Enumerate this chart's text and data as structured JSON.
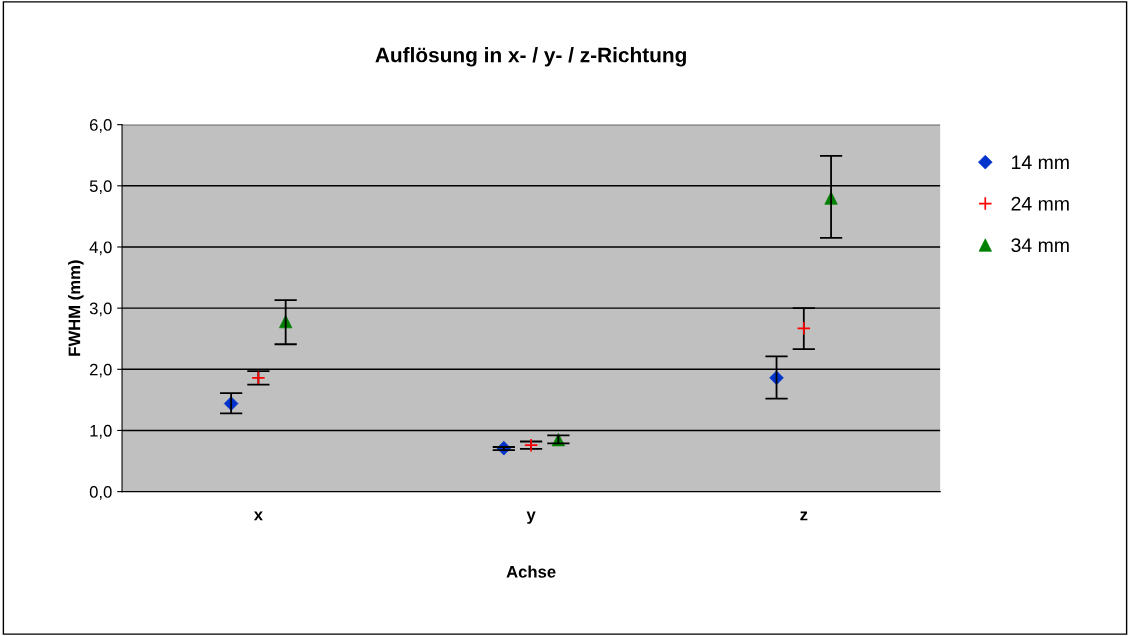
{
  "chart_data": {
    "type": "scatter",
    "title": "Auflösung in x- / y- / z-Richtung",
    "xlabel": "Achse",
    "ylabel": "FWHM (mm)",
    "categories": [
      "x",
      "y",
      "z"
    ],
    "series": [
      {
        "name": "14 mm",
        "color": "#0033cc",
        "marker": "diamond",
        "values": [
          1.44,
          0.71,
          1.86
        ],
        "errors": [
          [
            1.28,
            1.61
          ],
          [
            0.68,
            0.73
          ],
          [
            1.52,
            2.21
          ]
        ]
      },
      {
        "name": "24 mm",
        "color": "#ff0000",
        "marker": "cross",
        "values": [
          1.86,
          0.76,
          2.67
        ],
        "errors": [
          [
            1.75,
            1.97
          ],
          [
            0.7,
            0.82
          ],
          [
            2.33,
            3.0
          ]
        ]
      },
      {
        "name": "34 mm",
        "color": "#008000",
        "marker": "triangle",
        "values": [
          2.78,
          0.85,
          4.8
        ],
        "errors": [
          [
            2.41,
            3.13
          ],
          [
            0.79,
            0.92
          ],
          [
            4.15,
            5.49
          ]
        ]
      }
    ],
    "ylim": [
      0,
      6
    ],
    "yticks": [
      {
        "value": 0,
        "label": "0,0"
      },
      {
        "value": 1,
        "label": "1,0"
      },
      {
        "value": 2,
        "label": "2,0"
      },
      {
        "value": 3,
        "label": "3,0"
      },
      {
        "value": 4,
        "label": "4,0"
      },
      {
        "value": 5,
        "label": "5,0"
      },
      {
        "value": 6,
        "label": "6,0"
      }
    ],
    "grid": "y",
    "legend": "right"
  }
}
